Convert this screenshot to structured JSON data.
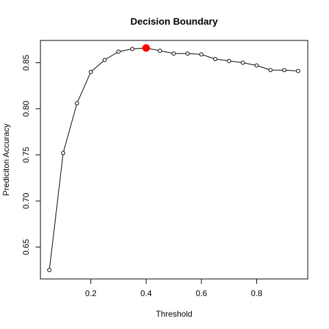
{
  "chart_data": {
    "type": "line",
    "title": "Decision Boundary",
    "xlabel": "Threshold",
    "ylabel": "Prediciton Accuracy",
    "xlim": [
      0.05,
      0.95
    ],
    "ylim": [
      0.625,
      0.866
    ],
    "x_ticks": [
      0.2,
      0.4,
      0.6,
      0.8
    ],
    "x_tick_labels": [
      "0.2",
      "0.4",
      "0.6",
      "0.8"
    ],
    "y_ticks": [
      0.65,
      0.7,
      0.75,
      0.8,
      0.85
    ],
    "y_tick_labels": [
      "0.65",
      "0.70",
      "0.75",
      "0.80",
      "0.85"
    ],
    "grid": false,
    "x": [
      0.05,
      0.1,
      0.15,
      0.2,
      0.25,
      0.3,
      0.35,
      0.4,
      0.45,
      0.5,
      0.55,
      0.6,
      0.65,
      0.7,
      0.75,
      0.8,
      0.85,
      0.9,
      0.95
    ],
    "values": [
      0.625,
      0.752,
      0.806,
      0.84,
      0.853,
      0.862,
      0.865,
      0.866,
      0.863,
      0.86,
      0.86,
      0.859,
      0.854,
      0.852,
      0.85,
      0.847,
      0.842,
      0.842,
      0.841
    ],
    "highlight": {
      "x": 0.4,
      "y": 0.866
    },
    "colors": {
      "line": "#000000",
      "point_fill": "#ffffff",
      "highlight": "#ff0000",
      "axis": "#000000"
    }
  }
}
